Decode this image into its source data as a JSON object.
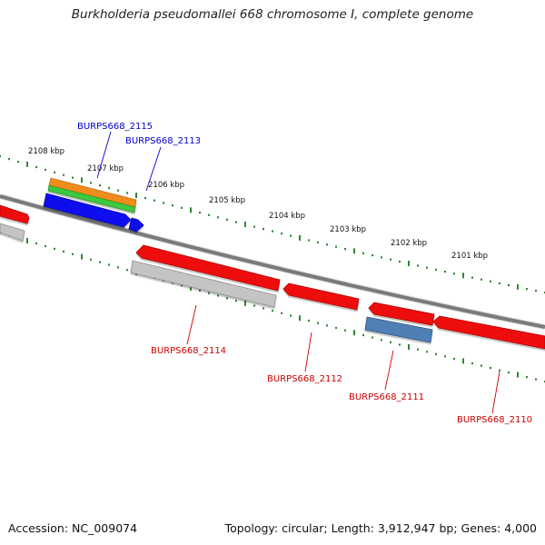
{
  "title": "Burkholderia pseudomallei 668 chromosome I, complete genome",
  "footer": {
    "accession": "Accession: NC_009074",
    "summary": "Topology: circular; Length: 3,912,947 bp; Genes: 4,000"
  },
  "colors": {
    "background": "#ffffff",
    "backbone": "#7a7a7a",
    "ruler_dots": "#1a7a1a",
    "forward_label": "#0000cc",
    "reverse_label": "#cc0000",
    "gene_red": "#ee1111",
    "gene_gray": "#bdbdbd",
    "gene_blue": "#1111ee",
    "gene_orange": "#f08c1e",
    "gene_green": "#3ec83e",
    "gene_steel": "#4f7fb5"
  },
  "ruler": {
    "unit": "kbp",
    "labels": [
      "2108 kbp",
      "2107 kbp",
      "2106 kbp",
      "2105 kbp",
      "2104 kbp",
      "2103 kbp",
      "2102 kbp",
      "2101 kbp"
    ]
  },
  "genes": [
    {
      "name": "BURPS668_2115",
      "strand": "forward"
    },
    {
      "name": "BURPS668_2113",
      "strand": "forward"
    },
    {
      "name": "BURPS668_2114",
      "strand": "reverse"
    },
    {
      "name": "BURPS668_2112",
      "strand": "reverse"
    },
    {
      "name": "BURPS668_2111",
      "strand": "reverse"
    },
    {
      "name": "BURPS668_2110",
      "strand": "reverse"
    }
  ]
}
